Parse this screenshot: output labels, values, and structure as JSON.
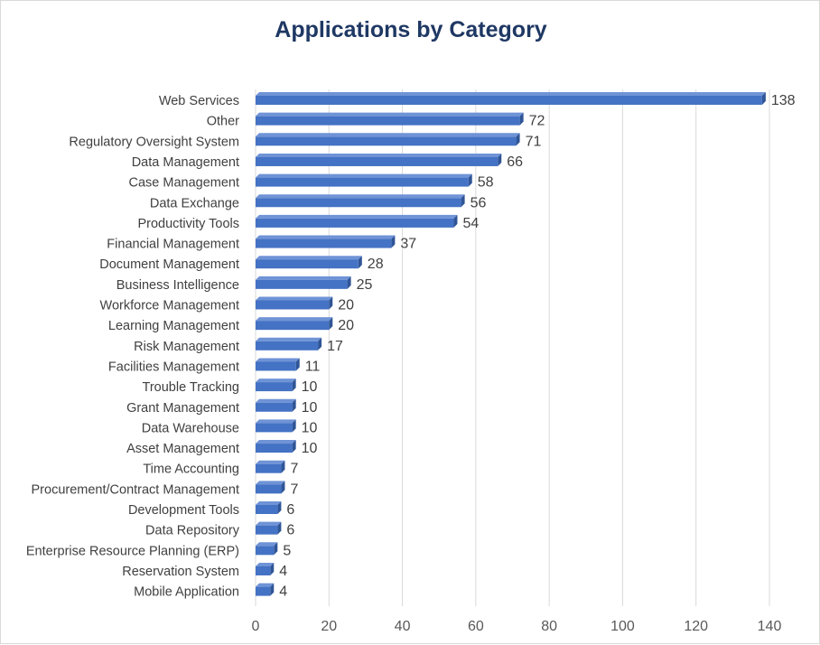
{
  "chart_data": {
    "type": "bar",
    "orientation": "horizontal",
    "title": "Applications by Category",
    "categories": [
      "Web Services",
      "Other",
      "Regulatory Oversight System",
      "Data Management",
      "Case Management",
      "Data Exchange",
      "Productivity Tools",
      "Financial Management",
      "Document Management",
      "Business Intelligence",
      "Workforce Management",
      "Learning Management",
      "Risk Management",
      "Facilities Management",
      "Trouble Tracking",
      "Grant Management",
      "Data Warehouse",
      "Asset Management",
      "Time Accounting",
      "Procurement/Contract Management",
      "Development Tools",
      "Data Repository",
      "Enterprise Resource Planning (ERP)",
      "Reservation System",
      "Mobile Application"
    ],
    "values": [
      138,
      72,
      71,
      66,
      58,
      56,
      54,
      37,
      28,
      25,
      20,
      20,
      17,
      11,
      10,
      10,
      10,
      10,
      7,
      7,
      6,
      6,
      5,
      4,
      4
    ],
    "xlim": [
      0,
      140
    ],
    "xticks": [
      0,
      20,
      40,
      60,
      80,
      100,
      120,
      140
    ],
    "grid": "vertical",
    "legend": "none",
    "data_labels": true,
    "colors": {
      "bar": "#4472c4",
      "bar_top": "#6f93d6",
      "bar_side": "#2f5597",
      "grid": "#d9d9d9",
      "title": "#1f3864"
    }
  }
}
